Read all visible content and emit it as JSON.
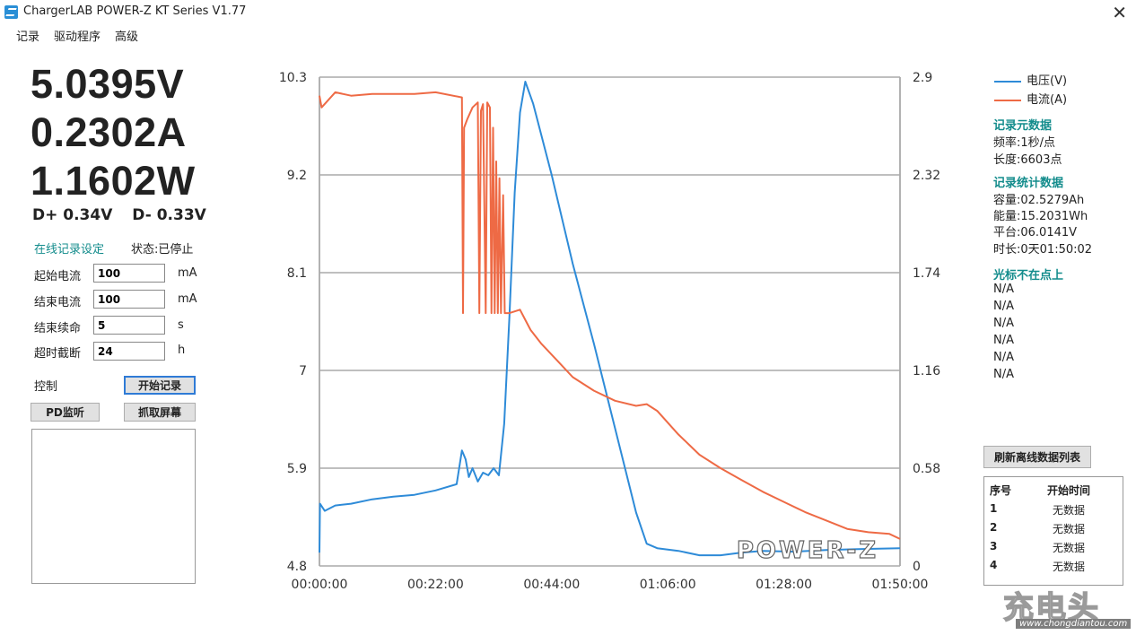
{
  "window": {
    "title": "ChargerLAB POWER-Z  KT Series V1.77",
    "close_icon": "close-icon"
  },
  "menu": [
    "记录",
    "驱动程序",
    "高级"
  ],
  "readings": {
    "voltage": "5.0395V",
    "current": "0.2302A",
    "power": "1.1602W",
    "dplus": "D+ 0.34V",
    "dminus": "D- 0.33V"
  },
  "online_record": {
    "title": "在线记录设定",
    "status": "状态:已停止",
    "fields": [
      {
        "label": "起始电流",
        "value": "100",
        "unit": "mA"
      },
      {
        "label": "结束电流",
        "value": "100",
        "unit": "mA"
      },
      {
        "label": "结束续命",
        "value": "5",
        "unit": "s"
      },
      {
        "label": "超时截断",
        "value": "24",
        "unit": "h"
      }
    ]
  },
  "control": {
    "label": "控制",
    "start_record": "开始记录",
    "pd_monitor": "PD监听",
    "screenshot": "抓取屏幕"
  },
  "chart_data": {
    "type": "line",
    "brand_mark": "POWER-Z",
    "x_ticks": [
      "00:00:00",
      "00:22:00",
      "00:44:00",
      "01:06:00",
      "01:28:00",
      "01:50:00"
    ],
    "y_left_ticks": [
      "10.3",
      "9.2",
      "8.1",
      "7",
      "5.9",
      "4.8"
    ],
    "y_right_ticks": [
      "2.9",
      "2.32",
      "1.74",
      "1.16",
      "0.58",
      "0"
    ],
    "y_left_range": [
      4.8,
      10.3
    ],
    "y_right_range": [
      0,
      2.9
    ],
    "x_range_minutes": [
      0,
      110
    ],
    "grid": true,
    "legend_position": "right",
    "series": [
      {
        "name": "电压(V)",
        "axis": "left",
        "color": "#2e8bd8",
        "points": [
          [
            0,
            4.95
          ],
          [
            0.1,
            5.5
          ],
          [
            1,
            5.42
          ],
          [
            3,
            5.48
          ],
          [
            6,
            5.5
          ],
          [
            10,
            5.55
          ],
          [
            14,
            5.58
          ],
          [
            18,
            5.6
          ],
          [
            22,
            5.65
          ],
          [
            26,
            5.72
          ],
          [
            27,
            6.1
          ],
          [
            27.7,
            6.0
          ],
          [
            28.3,
            5.8
          ],
          [
            29,
            5.9
          ],
          [
            30,
            5.75
          ],
          [
            31,
            5.85
          ],
          [
            32,
            5.82
          ],
          [
            33,
            5.9
          ],
          [
            34,
            5.82
          ],
          [
            35,
            6.4
          ],
          [
            36,
            7.6
          ],
          [
            37,
            9.0
          ],
          [
            38,
            9.9
          ],
          [
            39,
            10.25
          ],
          [
            40.5,
            10.0
          ],
          [
            44,
            9.2
          ],
          [
            48,
            8.2
          ],
          [
            52,
            7.3
          ],
          [
            56,
            6.35
          ],
          [
            60,
            5.4
          ],
          [
            62,
            5.05
          ],
          [
            64,
            5.0
          ],
          [
            68,
            4.97
          ],
          [
            72,
            4.92
          ],
          [
            76,
            4.92
          ],
          [
            80,
            4.95
          ],
          [
            84,
            4.97
          ],
          [
            90,
            4.96
          ],
          [
            96,
            4.98
          ],
          [
            102,
            4.99
          ],
          [
            110,
            5.0
          ]
        ]
      },
      {
        "name": "电流(A)",
        "axis": "right",
        "color": "#ee6a45",
        "points": [
          [
            0,
            2.79
          ],
          [
            0.4,
            2.72
          ],
          [
            3,
            2.81
          ],
          [
            6,
            2.79
          ],
          [
            10,
            2.8
          ],
          [
            14,
            2.8
          ],
          [
            18,
            2.8
          ],
          [
            22,
            2.81
          ],
          [
            27,
            2.78
          ],
          [
            27.2,
            1.5
          ],
          [
            27.4,
            2.6
          ],
          [
            28,
            2.65
          ],
          [
            29,
            2.72
          ],
          [
            30,
            2.75
          ],
          [
            30.3,
            1.5
          ],
          [
            30.6,
            2.7
          ],
          [
            31,
            2.74
          ],
          [
            31.5,
            1.5
          ],
          [
            31.8,
            2.75
          ],
          [
            32.3,
            2.72
          ],
          [
            32.6,
            1.5
          ],
          [
            32.9,
            2.6
          ],
          [
            33.2,
            1.5
          ],
          [
            33.5,
            2.4
          ],
          [
            33.8,
            1.5
          ],
          [
            34.1,
            2.3
          ],
          [
            34.4,
            1.5
          ],
          [
            34.8,
            2.2
          ],
          [
            35.1,
            1.5
          ],
          [
            36,
            1.5
          ],
          [
            38,
            1.52
          ],
          [
            39,
            1.46
          ],
          [
            40,
            1.4
          ],
          [
            42,
            1.32
          ],
          [
            45,
            1.22
          ],
          [
            48,
            1.12
          ],
          [
            52,
            1.04
          ],
          [
            56,
            0.98
          ],
          [
            60,
            0.95
          ],
          [
            62,
            0.96
          ],
          [
            64,
            0.92
          ],
          [
            68,
            0.78
          ],
          [
            72,
            0.66
          ],
          [
            76,
            0.58
          ],
          [
            80,
            0.51
          ],
          [
            84,
            0.44
          ],
          [
            88,
            0.38
          ],
          [
            92,
            0.32
          ],
          [
            96,
            0.27
          ],
          [
            100,
            0.22
          ],
          [
            104,
            0.2
          ],
          [
            108,
            0.19
          ],
          [
            110,
            0.16
          ]
        ]
      }
    ]
  },
  "legend": {
    "voltage": "电压(V)",
    "current": "电流(A)"
  },
  "meta": {
    "title": "记录元数据",
    "freq": "频率:1秒/点",
    "length": "长度:6603点"
  },
  "stats": {
    "title": "记录统计数据",
    "capacity": "容量:02.5279Ah",
    "energy": "能量:15.2031Wh",
    "plateau": "平台:06.0141V",
    "duration": "时长:0天01:50:02"
  },
  "cursor": {
    "title": "光标不在点上",
    "values": [
      "N/A",
      "N/A",
      "N/A",
      "N/A",
      "N/A",
      "N/A"
    ]
  },
  "offline": {
    "refresh": "刷新离线数据列表",
    "headers": [
      "序号",
      "开始时间"
    ],
    "rows": [
      [
        "1",
        "无数据"
      ],
      [
        "2",
        "无数据"
      ],
      [
        "3",
        "无数据"
      ],
      [
        "4",
        "无数据"
      ]
    ]
  },
  "watermark": {
    "logo": "充电头",
    "url": "www.chongdiantou.com"
  }
}
